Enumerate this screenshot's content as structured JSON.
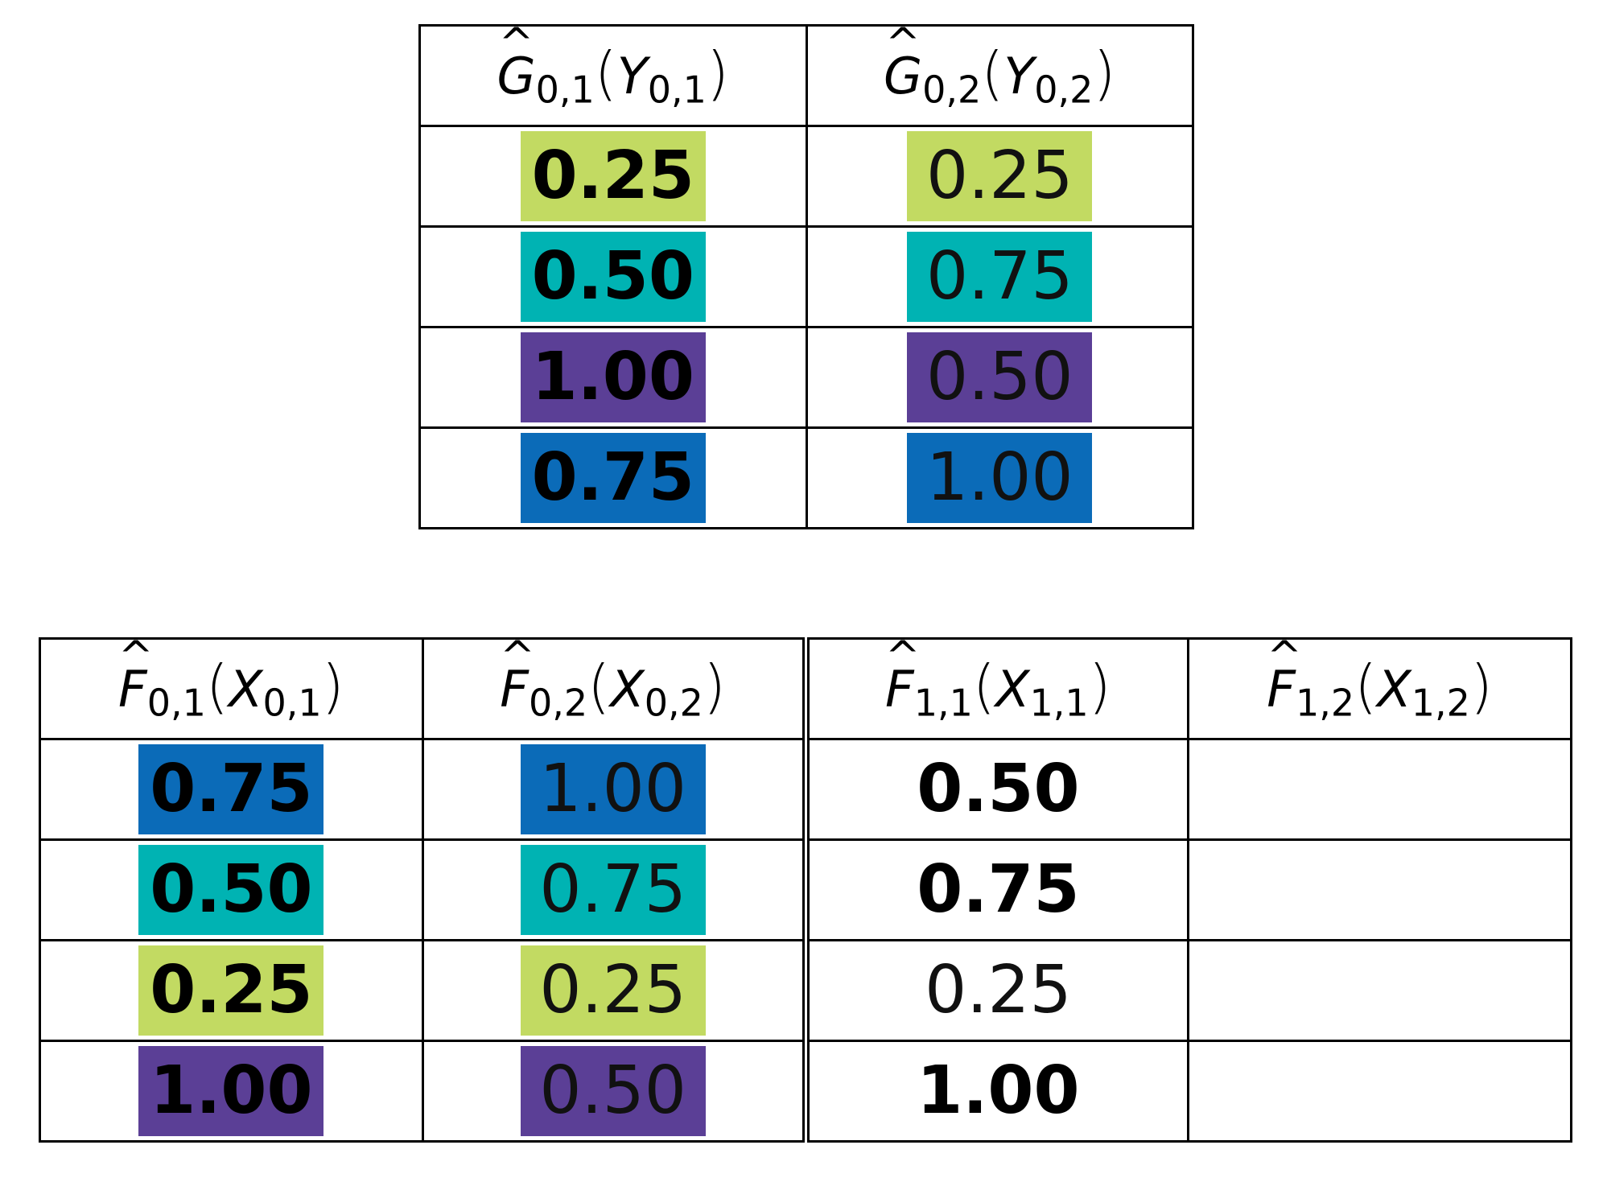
{
  "colors": {
    "lime": "#c2da62",
    "teal": "#00b3b3",
    "purple": "#5b3f96",
    "blue": "#0b6bb8"
  },
  "top_table": {
    "headers": [
      {
        "sym": "G",
        "hat": "^",
        "sub": "0,1",
        "arg": "Y",
        "argsub": "0,1"
      },
      {
        "sym": "G",
        "hat": "^",
        "sub": "0,2",
        "arg": "Y",
        "argsub": "0,2"
      }
    ],
    "rows": [
      [
        {
          "text": "0.25",
          "color": "lime",
          "bold": true
        },
        {
          "text": "0.25",
          "color": "lime",
          "bold": false
        }
      ],
      [
        {
          "text": "0.50",
          "color": "teal",
          "bold": true
        },
        {
          "text": "0.75",
          "color": "teal",
          "bold": false
        }
      ],
      [
        {
          "text": "1.00",
          "color": "purple",
          "bold": true
        },
        {
          "text": "0.50",
          "color": "purple",
          "bold": false
        }
      ],
      [
        {
          "text": "0.75",
          "color": "blue",
          "bold": true
        },
        {
          "text": "1.00",
          "color": "blue",
          "bold": false
        }
      ]
    ]
  },
  "bottom_table": {
    "headers": [
      {
        "sym": "F",
        "hat": "^",
        "sub": "0,1",
        "arg": "X",
        "argsub": "0,1"
      },
      {
        "sym": "F",
        "hat": "^",
        "sub": "0,2",
        "arg": "X",
        "argsub": "0,2"
      },
      {
        "sym": "F",
        "hat": "^",
        "sub": "1,1",
        "arg": "X",
        "argsub": "1,1"
      },
      {
        "sym": "F",
        "hat": "^",
        "sub": "1,2",
        "arg": "X",
        "argsub": "1,2"
      }
    ],
    "rows": [
      [
        {
          "text": "0.75",
          "color": "blue",
          "bold": true
        },
        {
          "text": "1.00",
          "color": "blue",
          "bold": false
        },
        {
          "text": "0.50",
          "color": "",
          "bold": true
        },
        {
          "text": "",
          "color": "",
          "bold": false
        }
      ],
      [
        {
          "text": "0.50",
          "color": "teal",
          "bold": true
        },
        {
          "text": "0.75",
          "color": "teal",
          "bold": false
        },
        {
          "text": "0.75",
          "color": "",
          "bold": true
        },
        {
          "text": "",
          "color": "",
          "bold": false
        }
      ],
      [
        {
          "text": "0.25",
          "color": "lime",
          "bold": true
        },
        {
          "text": "0.25",
          "color": "lime",
          "bold": false
        },
        {
          "text": "0.25",
          "color": "",
          "bold": false
        },
        {
          "text": "",
          "color": "",
          "bold": false
        }
      ],
      [
        {
          "text": "1.00",
          "color": "purple",
          "bold": true
        },
        {
          "text": "0.50",
          "color": "purple",
          "bold": false
        },
        {
          "text": "1.00",
          "color": "",
          "bold": true
        },
        {
          "text": "",
          "color": "",
          "bold": false
        }
      ]
    ]
  }
}
